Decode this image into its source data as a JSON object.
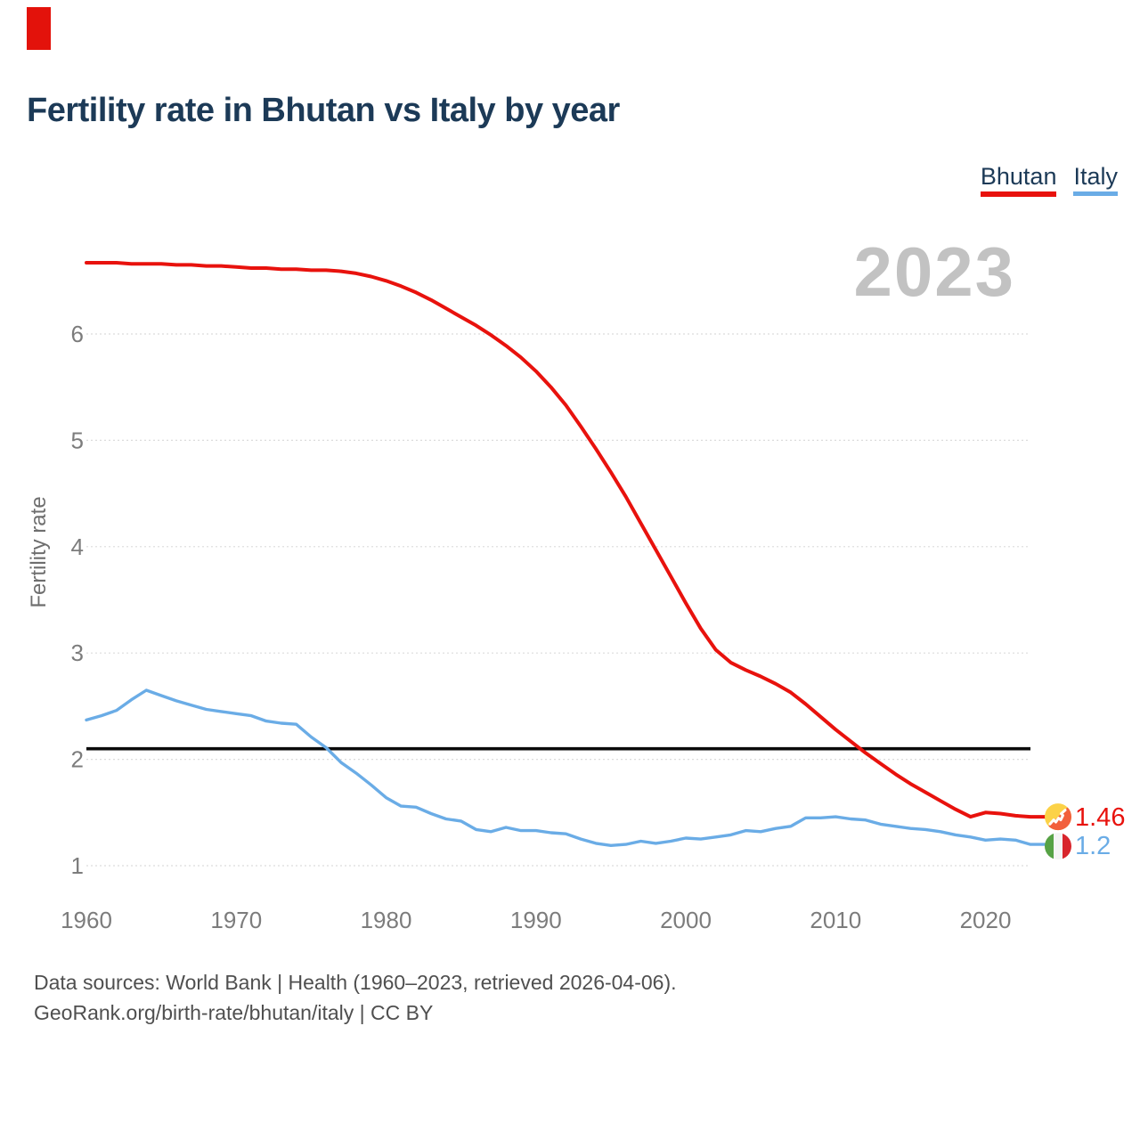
{
  "header": {
    "title": "Fertility rate in Bhutan vs Italy by year"
  },
  "legend": {
    "items": [
      {
        "label": "Bhutan",
        "color": "#e8120d"
      },
      {
        "label": "Italy",
        "color": "#6aace6"
      }
    ]
  },
  "watermark": {
    "text": "2023"
  },
  "footer": {
    "line1": "Data sources: World Bank | Health (1960–2023, retrieved 2026-04-06).",
    "line2": "GeoRank.org/birth-rate/bhutan/italy | CC BY"
  },
  "theme": {
    "brand_red": "#e3120b",
    "bhutan_red": "#e8120d",
    "italy_blue": "#6aace6",
    "navy": "#1c3a57",
    "axis_gray": "#7c7c7c",
    "watermark_gray": "#c2c2c2",
    "grid_gray": "#dcdcdc",
    "footer_gray": "#4f4f4f",
    "black_line": "#0b0b0b"
  },
  "chart_data": {
    "type": "line",
    "title": "Fertility rate in Bhutan vs Italy by year",
    "xlabel": "",
    "ylabel": "Fertility rate",
    "x_range": [
      1960,
      2023
    ],
    "x_ticks": [
      1960,
      1970,
      1980,
      1990,
      2000,
      2010,
      2020
    ],
    "y_ticks": [
      1,
      2,
      3,
      4,
      5,
      6
    ],
    "grid": "dotted horizontal",
    "legend_position": "top-right",
    "reference_line": {
      "value": 2.1,
      "color": "#0b0b0b"
    },
    "x": [
      1960,
      1961,
      1962,
      1963,
      1964,
      1965,
      1966,
      1967,
      1968,
      1969,
      1970,
      1971,
      1972,
      1973,
      1974,
      1975,
      1976,
      1977,
      1978,
      1979,
      1980,
      1981,
      1982,
      1983,
      1984,
      1985,
      1986,
      1987,
      1988,
      1989,
      1990,
      1991,
      1992,
      1993,
      1994,
      1995,
      1996,
      1997,
      1998,
      1999,
      2000,
      2001,
      2002,
      2003,
      2004,
      2005,
      2006,
      2007,
      2008,
      2009,
      2010,
      2011,
      2012,
      2013,
      2014,
      2015,
      2016,
      2017,
      2018,
      2019,
      2020,
      2021,
      2022,
      2023
    ],
    "series": [
      {
        "name": "Bhutan",
        "color": "#e8120d",
        "values": [
          6.67,
          6.67,
          6.67,
          6.66,
          6.66,
          6.66,
          6.65,
          6.65,
          6.64,
          6.64,
          6.63,
          6.62,
          6.62,
          6.61,
          6.61,
          6.6,
          6.6,
          6.59,
          6.57,
          6.54,
          6.5,
          6.45,
          6.39,
          6.32,
          6.24,
          6.16,
          6.08,
          5.99,
          5.89,
          5.78,
          5.65,
          5.5,
          5.33,
          5.13,
          4.92,
          4.7,
          4.47,
          4.22,
          3.97,
          3.72,
          3.47,
          3.23,
          3.03,
          2.91,
          2.84,
          2.78,
          2.71,
          2.63,
          2.52,
          2.4,
          2.28,
          2.17,
          2.06,
          1.96,
          1.86,
          1.77,
          1.69,
          1.61,
          1.53,
          1.46,
          1.5,
          1.49,
          1.47,
          1.46
        ]
      },
      {
        "name": "Italy",
        "color": "#6aace6",
        "values": [
          2.37,
          2.41,
          2.46,
          2.56,
          2.65,
          2.6,
          2.55,
          2.51,
          2.47,
          2.45,
          2.43,
          2.41,
          2.36,
          2.34,
          2.33,
          2.21,
          2.11,
          1.97,
          1.87,
          1.76,
          1.64,
          1.56,
          1.55,
          1.49,
          1.44,
          1.42,
          1.34,
          1.32,
          1.36,
          1.33,
          1.33,
          1.31,
          1.3,
          1.25,
          1.21,
          1.19,
          1.2,
          1.23,
          1.21,
          1.23,
          1.26,
          1.25,
          1.27,
          1.29,
          1.33,
          1.32,
          1.35,
          1.37,
          1.45,
          1.45,
          1.46,
          1.44,
          1.43,
          1.39,
          1.37,
          1.35,
          1.34,
          1.32,
          1.29,
          1.27,
          1.24,
          1.25,
          1.24,
          1.2
        ]
      }
    ],
    "end_labels": [
      {
        "series": "Bhutan",
        "text": "1.46"
      },
      {
        "series": "Italy",
        "text": "1.2"
      }
    ]
  }
}
